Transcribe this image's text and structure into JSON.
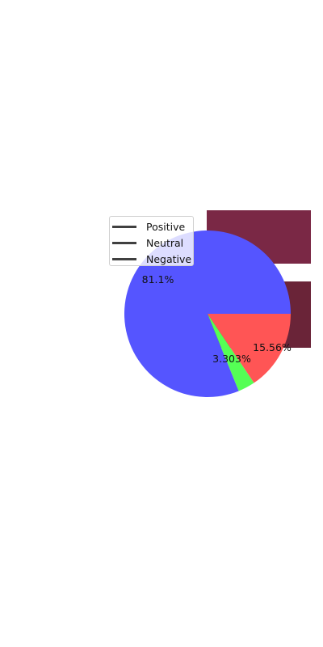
{
  "colors": {
    "block_top": "#7a2845",
    "block_bottom": "#6a2438",
    "legend_line": "#404040"
  },
  "chart_data": {
    "type": "pie",
    "labels": [
      "Positive",
      "Neutral",
      "Negative"
    ],
    "values": [
      81.1,
      3.303,
      15.56
    ],
    "value_labels": [
      "81.1%",
      "3.303%",
      "15.56%"
    ],
    "colors": [
      "#5555ff",
      "#55ff55",
      "#ff5555"
    ],
    "legend": {
      "placement": "upper-left",
      "entries": [
        "Positive",
        "Neutral",
        "Negative"
      ]
    }
  }
}
